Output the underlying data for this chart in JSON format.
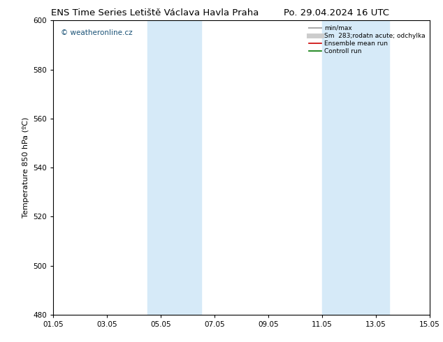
{
  "title_left": "ENS Time Series Letiště Václava Havla Praha",
  "title_right": "Po. 29.04.2024 16 UTC",
  "ylabel": "Temperature 850 hPa (ºC)",
  "ylim": [
    480,
    600
  ],
  "yticks": [
    480,
    500,
    520,
    540,
    560,
    580,
    600
  ],
  "xtick_labels": [
    "01.05",
    "03.05",
    "05.05",
    "07.05",
    "09.05",
    "11.05",
    "13.05",
    "15.05"
  ],
  "xtick_positions": [
    0,
    2,
    4,
    6,
    8,
    10,
    12,
    14
  ],
  "shaded_bands": [
    {
      "xstart": 3.5,
      "xend": 5.5,
      "color": "#d6eaf8"
    },
    {
      "xstart": 10.0,
      "xend": 12.5,
      "color": "#d6eaf8"
    }
  ],
  "watermark": "© weatheronline.cz",
  "watermark_color": "#1a5276",
  "legend_entries": [
    {
      "label": "min/max",
      "color": "#aaaaaa",
      "lw": 1.5
    },
    {
      "label": "Sm  283;rodatn acute; odchylka",
      "color": "#cccccc",
      "lw": 5
    },
    {
      "label": "Ensemble mean run",
      "color": "#cc0000",
      "lw": 1.2
    },
    {
      "label": "Controll run",
      "color": "#007700",
      "lw": 1.2
    }
  ],
  "background_color": "#ffffff",
  "plot_bg_color": "#ffffff",
  "title_fontsize": 9.5,
  "ylabel_fontsize": 8,
  "tick_fontsize": 7.5,
  "watermark_fontsize": 7.5,
  "legend_fontsize": 6.5
}
